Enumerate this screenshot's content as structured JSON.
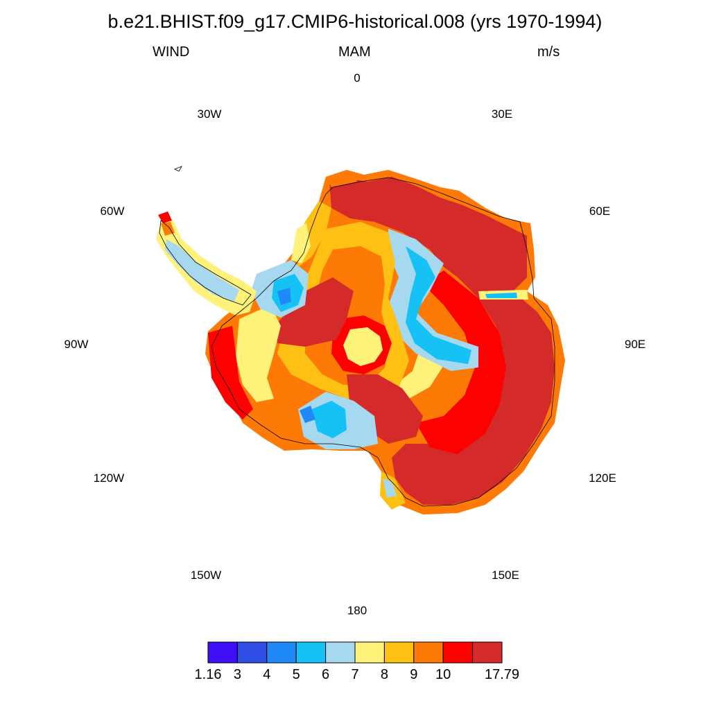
{
  "title": "b.e21.BHIST.f09_g17.CMIP6-historical.008 (yrs 1970-1994)",
  "subtitle": {
    "left": "WIND",
    "center": "MAM",
    "right": "m/s"
  },
  "longitude_labels": [
    "0",
    "30E",
    "60E",
    "90E",
    "120E",
    "150E",
    "180",
    "150W",
    "120W",
    "90W",
    "60W",
    "30W"
  ],
  "colorbar": {
    "colors": [
      "#3f0ff5",
      "#2f4ee3",
      "#1f8af7",
      "#16c2f5",
      "#a6d8f0",
      "#fff27a",
      "#fdc013",
      "#fd7a06",
      "#fd0000",
      "#d42a2a"
    ],
    "labels": [
      "1.16",
      "3",
      "4",
      "5",
      "6",
      "7",
      "8",
      "9",
      "10",
      "17.79"
    ]
  },
  "map_regions": {
    "palette": {
      "darkred": "#d42a2a",
      "red": "#fd0000",
      "orange": "#fd7a06",
      "gold": "#fdc013",
      "yellow": "#fff27a",
      "lightblue": "#a6d8f0",
      "cyan": "#16c2f5",
      "blue": "#1f8af7",
      "darkblue": "#2f4ee3"
    }
  }
}
